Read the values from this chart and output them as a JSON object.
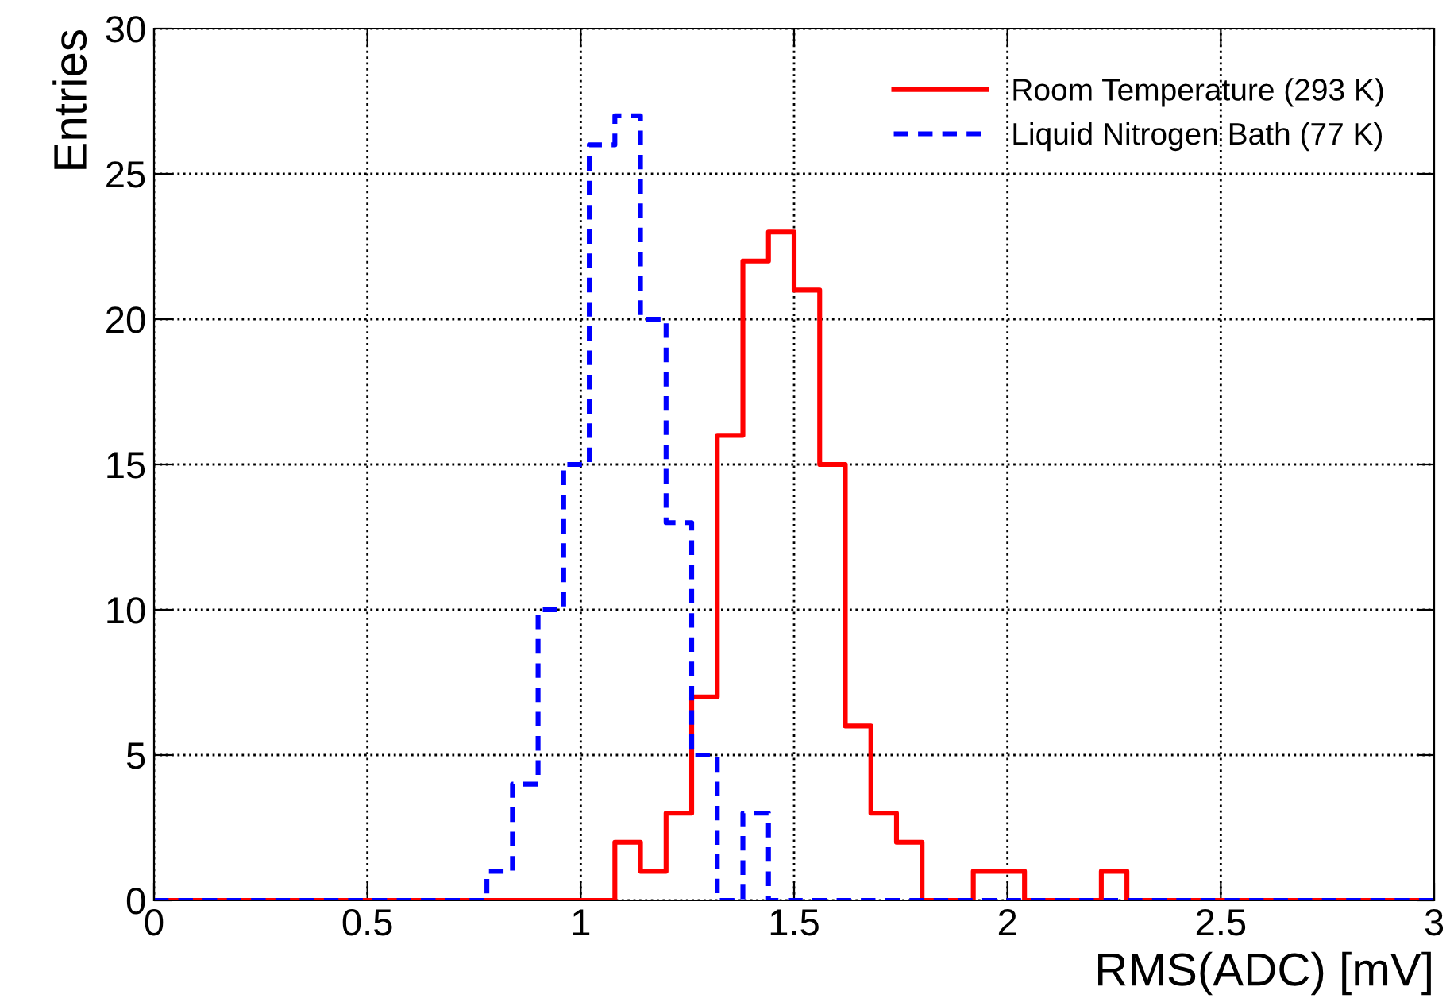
{
  "chart_data": {
    "type": "histogram",
    "xlabel": "RMS(ADC) [mV]",
    "ylabel": "Entries",
    "bins": [
      0,
      0.06,
      0.12,
      0.18,
      0.24,
      0.3,
      0.36,
      0.42,
      0.48,
      0.54,
      0.6,
      0.66,
      0.72,
      0.78,
      0.84,
      0.9,
      0.96,
      1.02,
      1.08,
      1.14,
      1.2,
      1.26,
      1.32,
      1.38,
      1.44,
      1.5,
      1.56,
      1.62,
      1.68,
      1.74,
      1.8,
      1.86,
      1.92,
      1.98,
      2.04,
      2.1,
      2.16,
      2.22,
      2.28,
      2.34,
      2.4,
      2.46,
      2.52,
      2.58,
      2.64,
      2.7,
      2.76,
      2.82,
      2.88,
      2.94,
      3.0
    ],
    "series": [
      {
        "name": "Room Temperature (293 K)",
        "color": "#ff0000",
        "line_style": "solid",
        "values": [
          0,
          0,
          0,
          0,
          0,
          0,
          0,
          0,
          0,
          0,
          0,
          0,
          0,
          0,
          0,
          0,
          0,
          0,
          2,
          1,
          3,
          7,
          16,
          22,
          23,
          21,
          15,
          6,
          3,
          2,
          0,
          0,
          1,
          1,
          0,
          0,
          0,
          1,
          0,
          0,
          0,
          0,
          0,
          0,
          0,
          0,
          0,
          0,
          0,
          0
        ]
      },
      {
        "name": "Liquid Nitrogen Bath (77 K)",
        "color": "#0000ff",
        "line_style": "dashed",
        "values": [
          0,
          0,
          0,
          0,
          0,
          0,
          0,
          0,
          0,
          0,
          0,
          0,
          0,
          1,
          4,
          10,
          15,
          26,
          27,
          20,
          13,
          5,
          0,
          3,
          0,
          0,
          0,
          0,
          0,
          0,
          0,
          0,
          0,
          0,
          0,
          0,
          0,
          0,
          0,
          0,
          0,
          0,
          0,
          0,
          0,
          0,
          0,
          0,
          0,
          0
        ]
      }
    ],
    "xlim": [
      0,
      3
    ],
    "ylim": [
      0,
      30
    ],
    "xticks": [
      0,
      0.5,
      1,
      1.5,
      2,
      2.5,
      3
    ],
    "yticks": [
      0,
      5,
      10,
      15,
      20,
      25,
      30
    ],
    "grid": true,
    "legend": "top right"
  }
}
